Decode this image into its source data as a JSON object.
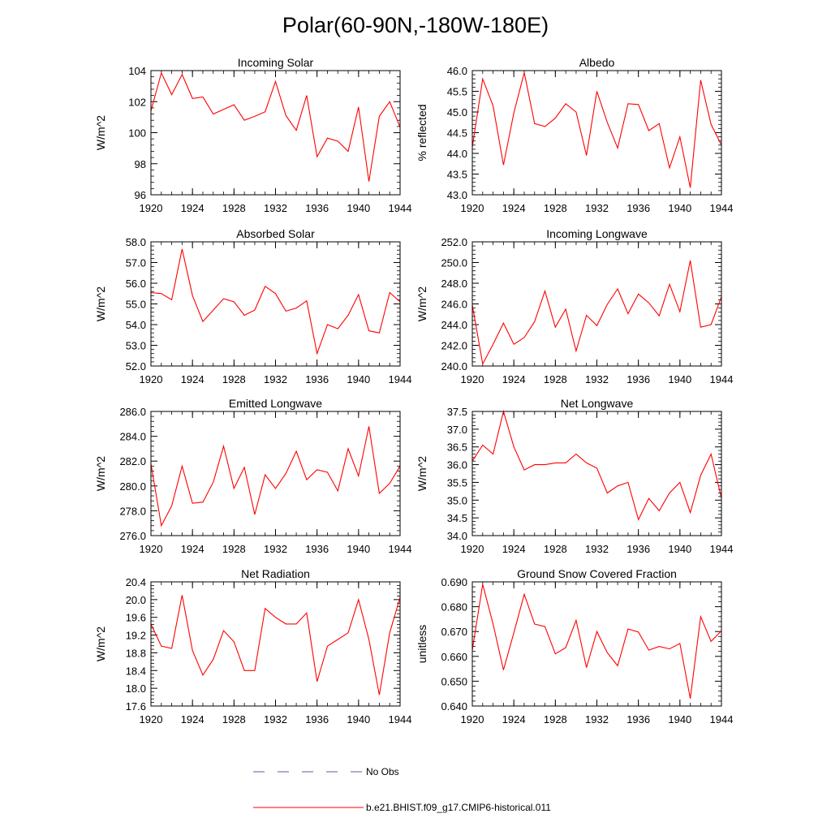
{
  "figure": {
    "title": "Polar(60-90N,-180W-180E)",
    "line_color": "#ff0000",
    "obs_color": "#5a5ab4"
  },
  "legend": {
    "obs_label": "No Obs",
    "model_label": "b.e21.BHIST.f09_g17.CMIP6-historical.011"
  },
  "chart_data": [
    {
      "type": "line",
      "title": "Incoming Solar",
      "ylabel": "W/m^2",
      "x": [
        1920,
        1921,
        1922,
        1923,
        1924,
        1925,
        1926,
        1927,
        1928,
        1929,
        1930,
        1931,
        1932,
        1933,
        1934,
        1935,
        1936,
        1937,
        1938,
        1939,
        1940,
        1941,
        1942,
        1943,
        1944
      ],
      "values": [
        101.4,
        103.85,
        102.45,
        103.75,
        102.2,
        102.3,
        101.2,
        101.5,
        101.8,
        100.8,
        101.05,
        101.35,
        103.3,
        101.1,
        100.15,
        102.4,
        98.45,
        99.65,
        99.45,
        98.8,
        101.65,
        96.85,
        101.05,
        102.0,
        100.35
      ],
      "xlim": [
        1920,
        1944
      ],
      "ylim": [
        96,
        104
      ],
      "xticks": [
        "1920",
        "1924",
        "1928",
        "1932",
        "1936",
        "1940",
        "1944"
      ],
      "yticks": [
        "96",
        "98",
        "100",
        "102",
        "104"
      ]
    },
    {
      "type": "line",
      "title": "Albedo",
      "ylabel": "% reflected",
      "x": [
        1920,
        1921,
        1922,
        1923,
        1924,
        1925,
        1926,
        1927,
        1928,
        1929,
        1930,
        1931,
        1932,
        1933,
        1934,
        1935,
        1936,
        1937,
        1938,
        1939,
        1940,
        1941,
        1942,
        1943,
        1944
      ],
      "values": [
        44.15,
        45.8,
        45.15,
        43.72,
        44.98,
        45.95,
        44.72,
        44.65,
        44.85,
        45.2,
        45.0,
        43.95,
        45.5,
        44.75,
        44.13,
        45.2,
        45.18,
        44.55,
        44.72,
        43.65,
        44.4,
        43.17,
        45.77,
        44.7,
        44.2
      ],
      "xlim": [
        1920,
        1944
      ],
      "ylim": [
        43.0,
        46.0
      ],
      "xticks": [
        "1920",
        "1924",
        "1928",
        "1932",
        "1936",
        "1940",
        "1944"
      ],
      "yticks": [
        "43.0",
        "43.5",
        "44.0",
        "44.5",
        "45.0",
        "45.5",
        "46.0"
      ]
    },
    {
      "type": "line",
      "title": "Absorbed Solar",
      "ylabel": "W/m^2",
      "x": [
        1920,
        1921,
        1922,
        1923,
        1924,
        1925,
        1926,
        1927,
        1928,
        1929,
        1930,
        1931,
        1932,
        1933,
        1934,
        1935,
        1936,
        1937,
        1938,
        1939,
        1940,
        1941,
        1942,
        1943,
        1944
      ],
      "values": [
        55.55,
        55.5,
        55.2,
        57.65,
        55.4,
        54.15,
        54.7,
        55.25,
        55.1,
        54.45,
        54.7,
        55.85,
        55.5,
        54.65,
        54.8,
        55.15,
        52.6,
        54.0,
        53.8,
        54.45,
        55.45,
        53.7,
        53.6,
        55.55,
        55.1
      ],
      "xlim": [
        1920,
        1944
      ],
      "ylim": [
        52.0,
        58.0
      ],
      "xticks": [
        "1920",
        "1924",
        "1928",
        "1932",
        "1936",
        "1940",
        "1944"
      ],
      "yticks": [
        "52.0",
        "53.0",
        "54.0",
        "55.0",
        "56.0",
        "57.0",
        "58.0"
      ]
    },
    {
      "type": "line",
      "title": "Incoming Longwave",
      "ylabel": "W/m^2",
      "x": [
        1920,
        1921,
        1922,
        1923,
        1924,
        1925,
        1926,
        1927,
        1928,
        1929,
        1930,
        1931,
        1932,
        1933,
        1934,
        1935,
        1936,
        1937,
        1938,
        1939,
        1940,
        1941,
        1942,
        1943,
        1944
      ],
      "values": [
        245.9,
        240.2,
        242.1,
        244.15,
        242.1,
        242.75,
        244.3,
        247.25,
        243.75,
        245.5,
        241.45,
        244.9,
        243.9,
        245.95,
        247.45,
        245.05,
        246.95,
        246.1,
        244.85,
        247.9,
        245.25,
        250.2,
        243.75,
        244.0,
        246.7
      ],
      "xlim": [
        1920,
        1944
      ],
      "ylim": [
        240.0,
        252.0
      ],
      "xticks": [
        "1920",
        "1924",
        "1928",
        "1932",
        "1936",
        "1940",
        "1944"
      ],
      "yticks": [
        "240.0",
        "242.0",
        "244.0",
        "246.0",
        "248.0",
        "250.0",
        "252.0"
      ]
    },
    {
      "type": "line",
      "title": "Emitted Longwave",
      "ylabel": "W/m^2",
      "x": [
        1920,
        1921,
        1922,
        1923,
        1924,
        1925,
        1926,
        1927,
        1928,
        1929,
        1930,
        1931,
        1932,
        1933,
        1934,
        1935,
        1936,
        1937,
        1938,
        1939,
        1940,
        1941,
        1942,
        1943,
        1944
      ],
      "values": [
        281.8,
        276.8,
        278.4,
        281.6,
        278.6,
        278.7,
        280.3,
        283.2,
        279.8,
        281.5,
        277.7,
        280.9,
        279.8,
        281.0,
        282.8,
        280.5,
        281.3,
        281.1,
        279.6,
        283.0,
        280.8,
        284.8,
        279.4,
        280.2,
        281.6
      ],
      "xlim": [
        1920,
        1944
      ],
      "ylim": [
        276.0,
        286.0
      ],
      "xticks": [
        "1920",
        "1924",
        "1928",
        "1932",
        "1936",
        "1940",
        "1944"
      ],
      "yticks": [
        "276.0",
        "278.0",
        "280.0",
        "282.0",
        "284.0",
        "286.0"
      ]
    },
    {
      "type": "line",
      "title": "Net Longwave",
      "ylabel": "W/m^2",
      "x": [
        1920,
        1921,
        1922,
        1923,
        1924,
        1925,
        1926,
        1927,
        1928,
        1929,
        1930,
        1931,
        1932,
        1933,
        1934,
        1935,
        1936,
        1937,
        1938,
        1939,
        1940,
        1941,
        1942,
        1943,
        1944
      ],
      "values": [
        36.1,
        36.55,
        36.3,
        37.5,
        36.5,
        35.85,
        36.0,
        36.0,
        36.05,
        36.05,
        36.3,
        36.05,
        35.9,
        35.2,
        35.4,
        35.5,
        34.45,
        35.05,
        34.7,
        35.2,
        35.5,
        34.65,
        35.7,
        36.3,
        35.05
      ],
      "xlim": [
        1920,
        1944
      ],
      "ylim": [
        34.0,
        37.5
      ],
      "xticks": [
        "1920",
        "1924",
        "1928",
        "1932",
        "1936",
        "1940",
        "1944"
      ],
      "yticks": [
        "34.0",
        "34.5",
        "35.0",
        "35.5",
        "36.0",
        "36.5",
        "37.0",
        "37.5"
      ]
    },
    {
      "type": "line",
      "title": "Net Radiation",
      "ylabel": "W/m^2",
      "x": [
        1920,
        1921,
        1922,
        1923,
        1924,
        1925,
        1926,
        1927,
        1928,
        1929,
        1930,
        1931,
        1932,
        1933,
        1934,
        1935,
        1936,
        1937,
        1938,
        1939,
        1940,
        1941,
        1942,
        1943,
        1944
      ],
      "values": [
        19.45,
        18.95,
        18.9,
        20.1,
        18.85,
        18.3,
        18.65,
        19.3,
        19.05,
        18.4,
        18.4,
        19.8,
        19.6,
        19.45,
        19.45,
        19.7,
        18.15,
        18.95,
        19.1,
        19.25,
        20.0,
        19.1,
        17.85,
        19.25,
        20.05
      ],
      "xlim": [
        1920,
        1944
      ],
      "ylim": [
        17.6,
        20.4
      ],
      "xticks": [
        "1920",
        "1924",
        "1928",
        "1932",
        "1936",
        "1940",
        "1944"
      ],
      "yticks": [
        "17.6",
        "18.0",
        "18.4",
        "18.8",
        "19.2",
        "19.6",
        "20.0",
        "20.4"
      ]
    },
    {
      "type": "line",
      "title": "Ground Snow Covered Fraction",
      "ylabel": "unitless",
      "x": [
        1920,
        1921,
        1922,
        1923,
        1924,
        1925,
        1926,
        1927,
        1928,
        1929,
        1930,
        1931,
        1932,
        1933,
        1934,
        1935,
        1936,
        1937,
        1938,
        1939,
        1940,
        1941,
        1942,
        1943,
        1944
      ],
      "values": [
        0.6625,
        0.689,
        0.673,
        0.6545,
        0.6695,
        0.685,
        0.673,
        0.672,
        0.661,
        0.6635,
        0.6745,
        0.6555,
        0.67,
        0.6615,
        0.6562,
        0.671,
        0.6698,
        0.6625,
        0.664,
        0.663,
        0.6652,
        0.643,
        0.676,
        0.666,
        0.6703
      ],
      "xlim": [
        1920,
        1944
      ],
      "ylim": [
        0.64,
        0.69
      ],
      "xticks": [
        "1920",
        "1924",
        "1928",
        "1932",
        "1936",
        "1940",
        "1944"
      ],
      "yticks": [
        "0.640",
        "0.650",
        "0.660",
        "0.670",
        "0.680",
        "0.690"
      ]
    }
  ]
}
